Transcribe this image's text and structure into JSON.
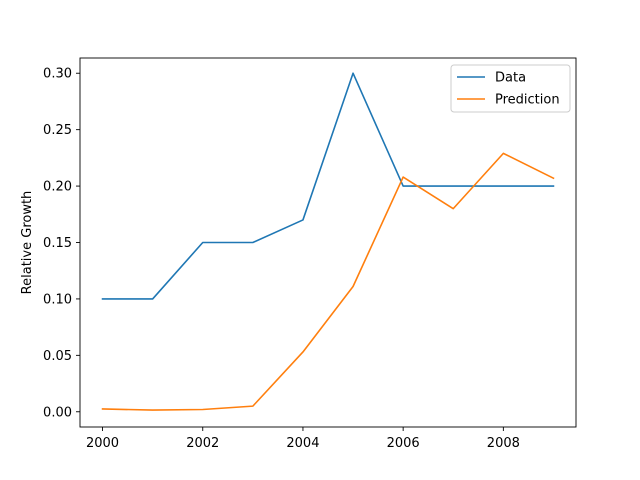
{
  "chart_data": {
    "type": "line",
    "title": "",
    "xlabel": "",
    "ylabel": "Relative Growth",
    "x": [
      2000,
      2001,
      2002,
      2003,
      2004,
      2005,
      2006,
      2007,
      2008,
      2009
    ],
    "xlim": [
      1999.55,
      2009.45
    ],
    "ylim": [
      -0.0135,
      0.3135
    ],
    "x_ticks": [
      2000,
      2002,
      2004,
      2006,
      2008
    ],
    "x_tick_labels": [
      "2000",
      "2002",
      "2004",
      "2006",
      "2008"
    ],
    "y_ticks": [
      0.0,
      0.05,
      0.1,
      0.15,
      0.2,
      0.25,
      0.3
    ],
    "y_tick_labels": [
      "0.00",
      "0.05",
      "0.10",
      "0.15",
      "0.20",
      "0.25",
      "0.30"
    ],
    "grid": false,
    "legend_position": "top-right",
    "series": [
      {
        "name": "Data",
        "color": "#1f77b4",
        "values": [
          0.1,
          0.1,
          0.15,
          0.15,
          0.17,
          0.3,
          0.2,
          0.2,
          0.2,
          0.2
        ]
      },
      {
        "name": "Prediction",
        "color": "#ff7f0e",
        "values": [
          0.0025,
          0.0015,
          0.002,
          0.005,
          0.053,
          0.111,
          0.208,
          0.18,
          0.229,
          0.207
        ]
      }
    ]
  }
}
